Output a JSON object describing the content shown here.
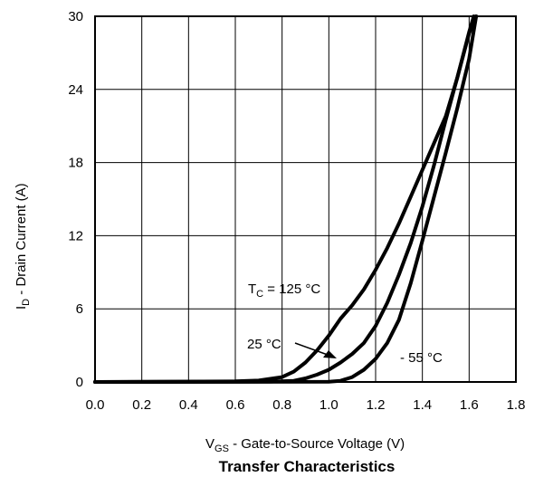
{
  "chart_data": {
    "type": "line",
    "title": "Transfer Characteristics",
    "xlabel": {
      "main": "V",
      "sub": "GS",
      "rest": " - Gate-to-Source Voltage (V)"
    },
    "ylabel": {
      "main": "I",
      "sub": "D",
      "rest": " - Drain Current (A)"
    },
    "xlim": [
      0,
      1.8
    ],
    "ylim": [
      0,
      30
    ],
    "x_ticks": [
      "0.0",
      "0.2",
      "0.4",
      "0.6",
      "0.8",
      "1.0",
      "1.2",
      "1.4",
      "1.6",
      "1.8"
    ],
    "y_ticks": [
      "0",
      "6",
      "12",
      "18",
      "24",
      "30"
    ],
    "grid": true,
    "legend": "none",
    "series": [
      {
        "name": "T_C = 125 °C",
        "x": [
          0.0,
          0.6,
          0.7,
          0.8,
          0.85,
          0.9,
          0.95,
          1.0,
          1.05,
          1.1,
          1.15,
          1.2,
          1.25,
          1.3,
          1.35,
          1.4,
          1.45,
          1.5,
          1.55,
          1.6,
          1.62
        ],
        "y": [
          0.0,
          0.05,
          0.12,
          0.4,
          0.85,
          1.6,
          2.6,
          3.8,
          5.2,
          6.3,
          7.6,
          9.2,
          11.0,
          13.0,
          15.2,
          17.4,
          19.6,
          21.8,
          25.0,
          28.7,
          30.0
        ]
      },
      {
        "name": "25 °C",
        "x": [
          0.0,
          0.75,
          0.85,
          0.9,
          0.95,
          1.0,
          1.05,
          1.1,
          1.15,
          1.2,
          1.25,
          1.3,
          1.35,
          1.4,
          1.45,
          1.5,
          1.55,
          1.6,
          1.63
        ],
        "y": [
          0.0,
          0.03,
          0.1,
          0.3,
          0.6,
          1.0,
          1.6,
          2.3,
          3.2,
          4.6,
          6.5,
          8.8,
          11.4,
          14.4,
          17.8,
          21.5,
          25.0,
          28.6,
          30.0
        ]
      },
      {
        "name": "- 55 °C",
        "x": [
          0.0,
          1.0,
          1.05,
          1.1,
          1.15,
          1.2,
          1.25,
          1.3,
          1.35,
          1.4,
          1.45,
          1.5,
          1.55,
          1.6,
          1.63
        ],
        "y": [
          0.0,
          0.02,
          0.1,
          0.4,
          1.0,
          1.9,
          3.2,
          5.1,
          8.1,
          11.6,
          15.2,
          18.8,
          22.5,
          26.5,
          30.0
        ]
      }
    ],
    "annotations": [
      {
        "main": "T",
        "sub": "C",
        "rest": " = 125 °C"
      },
      {
        "text": "25 °C"
      },
      {
        "text": "- 55 °C"
      }
    ]
  }
}
